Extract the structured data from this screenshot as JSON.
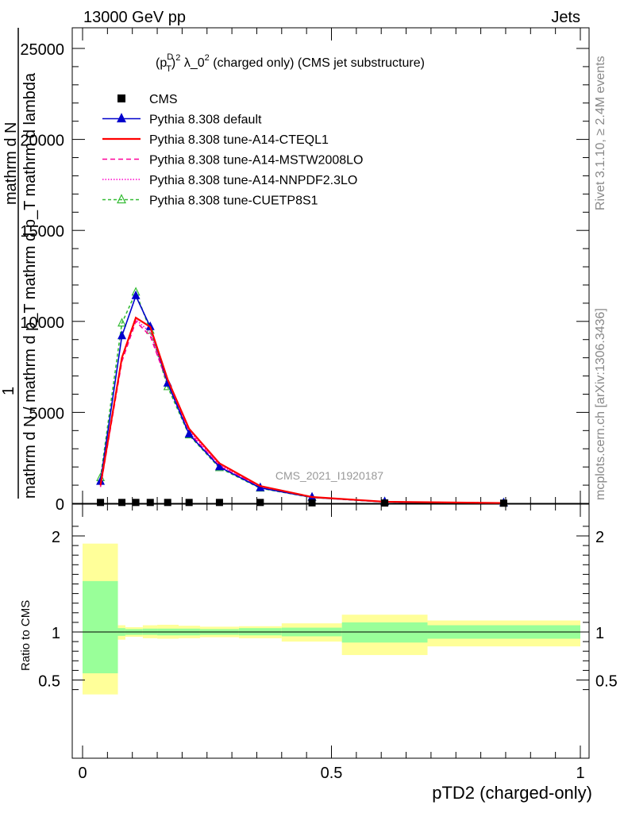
{
  "header": {
    "energy": "13000 GeV pp",
    "process": "Jets"
  },
  "side_labels": {
    "rivet": "Rivet 3.1.10, ≥ 2.4M events",
    "source": "mcplots.cern.ch [arXiv:1306.3436]"
  },
  "chart_data": [
    {
      "type": "line",
      "title": "(p_T^D)^2 λ_0^2 (charged only) (CMS jet substructure)",
      "title_parts": {
        "a": "(p",
        "sup1": "D",
        "sub1": "T",
        "b": ")",
        "sup2": "2",
        "c": " λ_0",
        "sup3": "2",
        "d": " (charged only) (CMS jet substructure)"
      },
      "ylabel_lines": [
        "mathrm d N / mathrm d p_T mathrm d p_T mathrm d lambda",
        "mathrm d N",
        "1"
      ],
      "watermark": "CMS_2021_I1920187",
      "xlim": [
        0,
        1
      ],
      "ylim": [
        0,
        26000
      ],
      "yticks": [
        0,
        5000,
        10000,
        15000,
        20000,
        25000
      ],
      "ytick_labels": [
        "0",
        "5000",
        "10000",
        "15000",
        "20000",
        "25000"
      ],
      "x": [
        0.036,
        0.079,
        0.107,
        0.136,
        0.171,
        0.214,
        0.275,
        0.357,
        0.461,
        0.607,
        0.846
      ],
      "series": [
        {
          "name": "CMS",
          "color": "#000000",
          "marker": "square",
          "values": [
            50,
            50,
            50,
            50,
            50,
            50,
            50,
            50,
            30,
            20,
            10
          ]
        },
        {
          "name": "Pythia 8.308 default",
          "color": "#0000cc",
          "marker": "triangle",
          "dash": "",
          "values": [
            1200,
            9200,
            11400,
            9700,
            6600,
            3800,
            2000,
            850,
            330,
            80,
            20
          ]
        },
        {
          "name": "Pythia 8.308 tune-A14-CTEQL1",
          "color": "#ff0000",
          "marker": "none",
          "dash": "",
          "values": [
            1000,
            8000,
            10200,
            9700,
            6800,
            4100,
            2200,
            950,
            350,
            90,
            20
          ]
        },
        {
          "name": "Pythia 8.308 tune-A14-MSTW2008LO",
          "color": "#ff0099",
          "marker": "none",
          "dash": "6,4",
          "values": [
            900,
            7800,
            10000,
            9200,
            6600,
            3900,
            2050,
            900,
            330,
            85,
            20
          ]
        },
        {
          "name": "Pythia 8.308 tune-A14-NNPDF2.3LO",
          "color": "#ff00cc",
          "marker": "none",
          "dash": "1.5,2",
          "values": [
            950,
            8000,
            10100,
            9400,
            6600,
            4000,
            2100,
            920,
            340,
            85,
            20
          ]
        },
        {
          "name": "Pythia 8.308 tune-CUETP8S1",
          "color": "#33bb33",
          "marker": "triangle-open",
          "dash": "4,3",
          "values": [
            1400,
            9900,
            11600,
            9500,
            6400,
            3750,
            1950,
            830,
            320,
            80,
            20
          ]
        }
      ]
    },
    {
      "type": "area",
      "ylabel": "Ratio to CMS",
      "xlabel": "pTD2 (charged-only)",
      "xlim": [
        0,
        1
      ],
      "ylim": [
        0.35,
        2.2
      ],
      "xticks": [
        0,
        0.5,
        1
      ],
      "xtick_labels": [
        "0",
        "0.5",
        "1"
      ],
      "yticks": [
        0.5,
        1,
        2
      ],
      "ytick_labels": [
        "0.5",
        "1",
        "2"
      ],
      "bins": [
        0,
        0.071,
        0.086,
        0.121,
        0.15,
        0.193,
        0.236,
        0.314,
        0.4,
        0.521,
        0.693,
        1.0
      ],
      "stat_band": {
        "color": "#99ff99",
        "low": [
          0.57,
          0.96,
          0.97,
          0.97,
          0.965,
          0.965,
          0.97,
          0.965,
          0.955,
          0.89,
          0.93
        ],
        "high": [
          1.53,
          1.04,
          1.03,
          1.035,
          1.035,
          1.035,
          1.03,
          1.04,
          1.045,
          1.1,
          1.07
        ]
      },
      "syst_band": {
        "color": "#ffff99",
        "low": [
          0.3,
          0.92,
          0.95,
          0.935,
          0.93,
          0.935,
          0.945,
          0.935,
          0.9,
          0.76,
          0.85
        ],
        "high": [
          1.92,
          1.07,
          1.05,
          1.07,
          1.075,
          1.065,
          1.055,
          1.06,
          1.09,
          1.18,
          1.12
        ]
      }
    }
  ]
}
